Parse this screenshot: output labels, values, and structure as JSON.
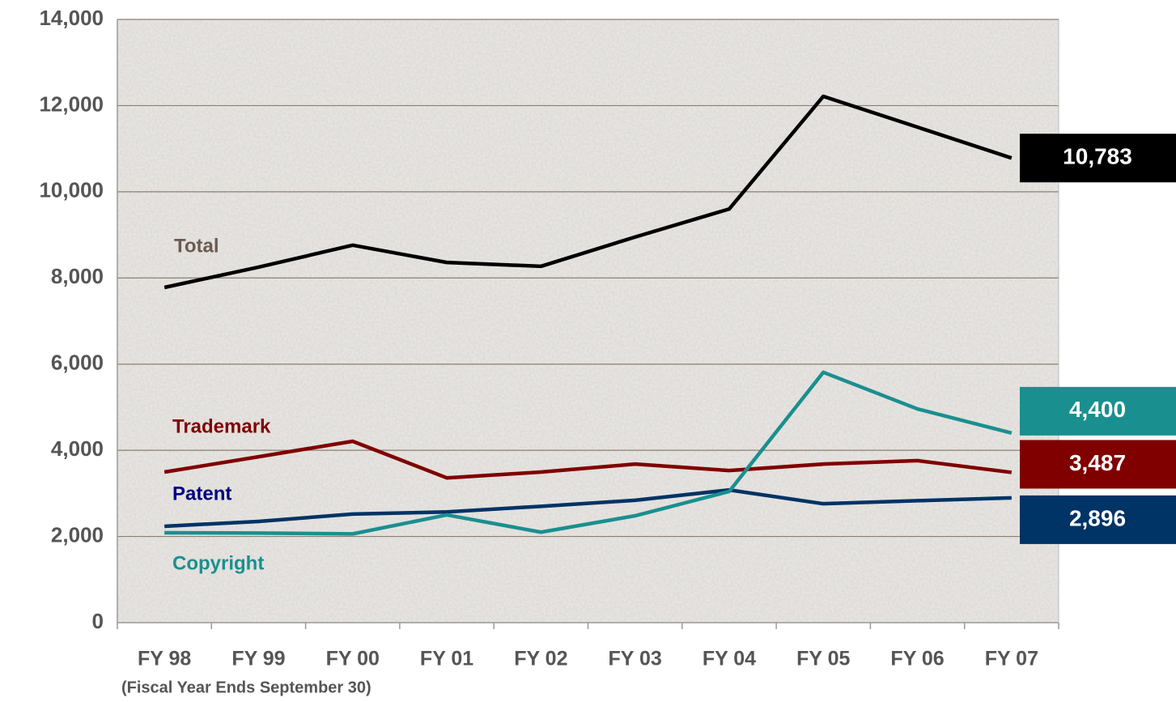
{
  "chart_data": {
    "type": "line",
    "subtitle": "(Fiscal Year Ends September 30)",
    "categories": [
      "FY 98",
      "FY 99",
      "FY 00",
      "FY 01",
      "FY 02",
      "FY 03",
      "FY 04",
      "FY 05",
      "FY 06",
      "FY 07"
    ],
    "series": [
      {
        "name": "Total",
        "color": "#000000",
        "values": [
          7780,
          8250,
          8760,
          8360,
          8270,
          8950,
          9600,
          12215,
          11500,
          10783
        ],
        "value_labels": [
          null,
          null,
          null,
          null,
          null,
          null,
          null,
          null,
          null,
          "10,783"
        ]
      },
      {
        "name": "Trademark",
        "color": "#800000",
        "values": [
          3495,
          3850,
          4210,
          3360,
          3495,
          3680,
          3530,
          3680,
          3760,
          3487
        ],
        "value_labels": [
          null,
          null,
          null,
          null,
          null,
          null,
          null,
          null,
          null,
          "3,487"
        ]
      },
      {
        "name": "Patent",
        "color": "#003366",
        "values": [
          2236,
          2350,
          2520,
          2570,
          2700,
          2840,
          3080,
          2760,
          2830,
          2896
        ],
        "value_labels": [
          null,
          null,
          null,
          null,
          null,
          null,
          null,
          null,
          null,
          "2,896"
        ]
      },
      {
        "name": "Copyright",
        "color": "#1a8f8f",
        "values": [
          2086,
          2080,
          2060,
          2500,
          2100,
          2480,
          3045,
          5810,
          4960,
          4400
        ],
        "value_labels": [
          null,
          null,
          null,
          null,
          null,
          null,
          null,
          null,
          null,
          "4,400"
        ]
      }
    ],
    "ylim": [
      0,
      14000
    ],
    "yticks": [
      0,
      {
        "value": 2000,
        "label": "2,000"
      },
      {
        "value": 4000,
        "label": "4,000"
      },
      {
        "value": 6000,
        "label": "6,000"
      },
      {
        "value": 8000,
        "label": "8,000"
      },
      {
        "value": 10000,
        "label": "10,000"
      },
      {
        "value": 12000,
        "label": "12,000"
      },
      {
        "value": 14000,
        "label": "14,000"
      }
    ],
    "grid": true
  }
}
